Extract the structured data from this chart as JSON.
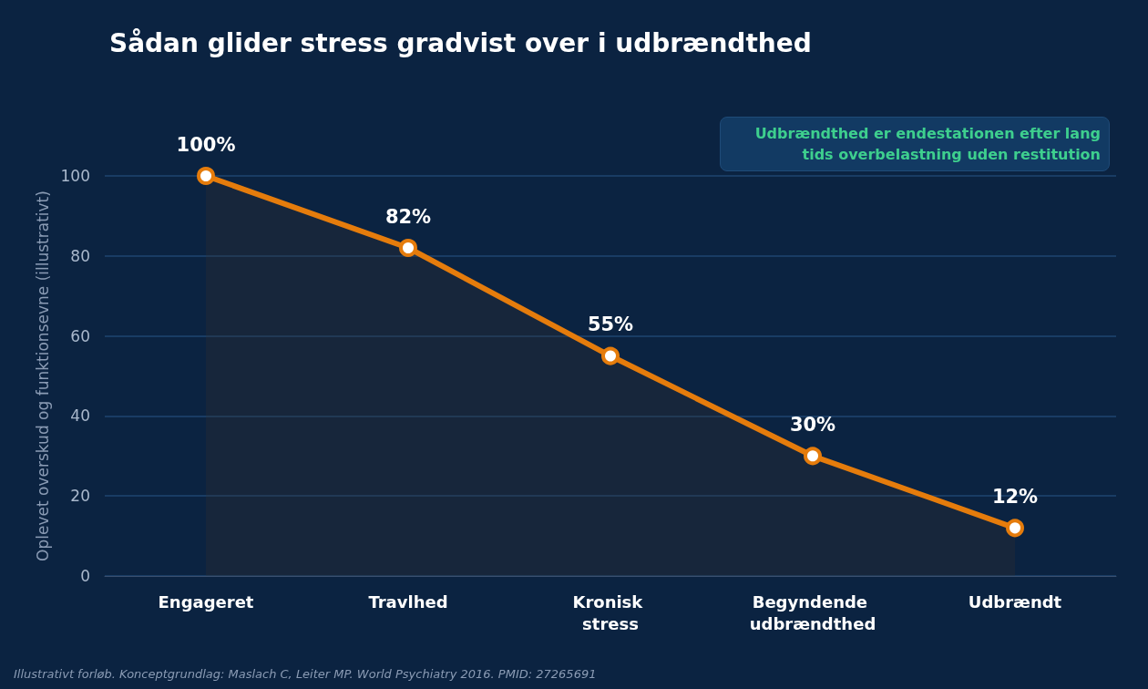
{
  "chart_data": {
    "type": "area",
    "title": "Sådan glider stress gradvist over i udbrændthed",
    "ylabel": "Oplevet overskud og funktionsevne (illustrativt)",
    "categories": [
      "Engageret",
      "Travlhed",
      "Kronisk stress",
      "Begyndende udbrændthed",
      "Udbrændt"
    ],
    "values": [
      100,
      82,
      55,
      30,
      12
    ],
    "value_labels": [
      "100%",
      "82%",
      "55%",
      "30%",
      "12%"
    ],
    "color": "#e57c0c",
    "ylim": [
      0,
      100
    ],
    "yticks": [
      0,
      20,
      40,
      60,
      80,
      100
    ],
    "grid": "y",
    "marker": "circle",
    "annotations": [
      "Udbrændthed er endestationen efter lang tids overbelastning uden restitution",
      "Illustrativt forløb. Konceptgrundlag: Maslach C, Leiter MP. World Psychiatry 2016. PMID: 27265691"
    ]
  }
}
